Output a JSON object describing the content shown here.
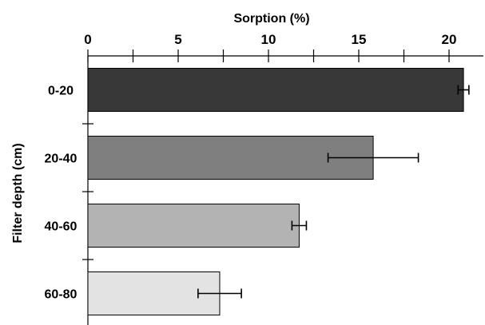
{
  "chart_data": {
    "type": "bar",
    "orientation": "horizontal",
    "xlabel": "Sorption (%)",
    "ylabel": "Filter depth (cm)",
    "xlim": [
      0,
      22
    ],
    "x_ticks": [
      0,
      5,
      10,
      15,
      20
    ],
    "x_axis_position": "top",
    "grid": false,
    "legend": "none",
    "categories": [
      "0-20",
      "20-40",
      "40-60",
      "60-80"
    ],
    "values": [
      20.8,
      15.8,
      11.7,
      7.3
    ],
    "error": [
      0.3,
      2.5,
      0.4,
      1.2
    ],
    "colors": [
      "#383838",
      "#7f7f7f",
      "#b3b3b3",
      "#e3e3e3"
    ]
  }
}
